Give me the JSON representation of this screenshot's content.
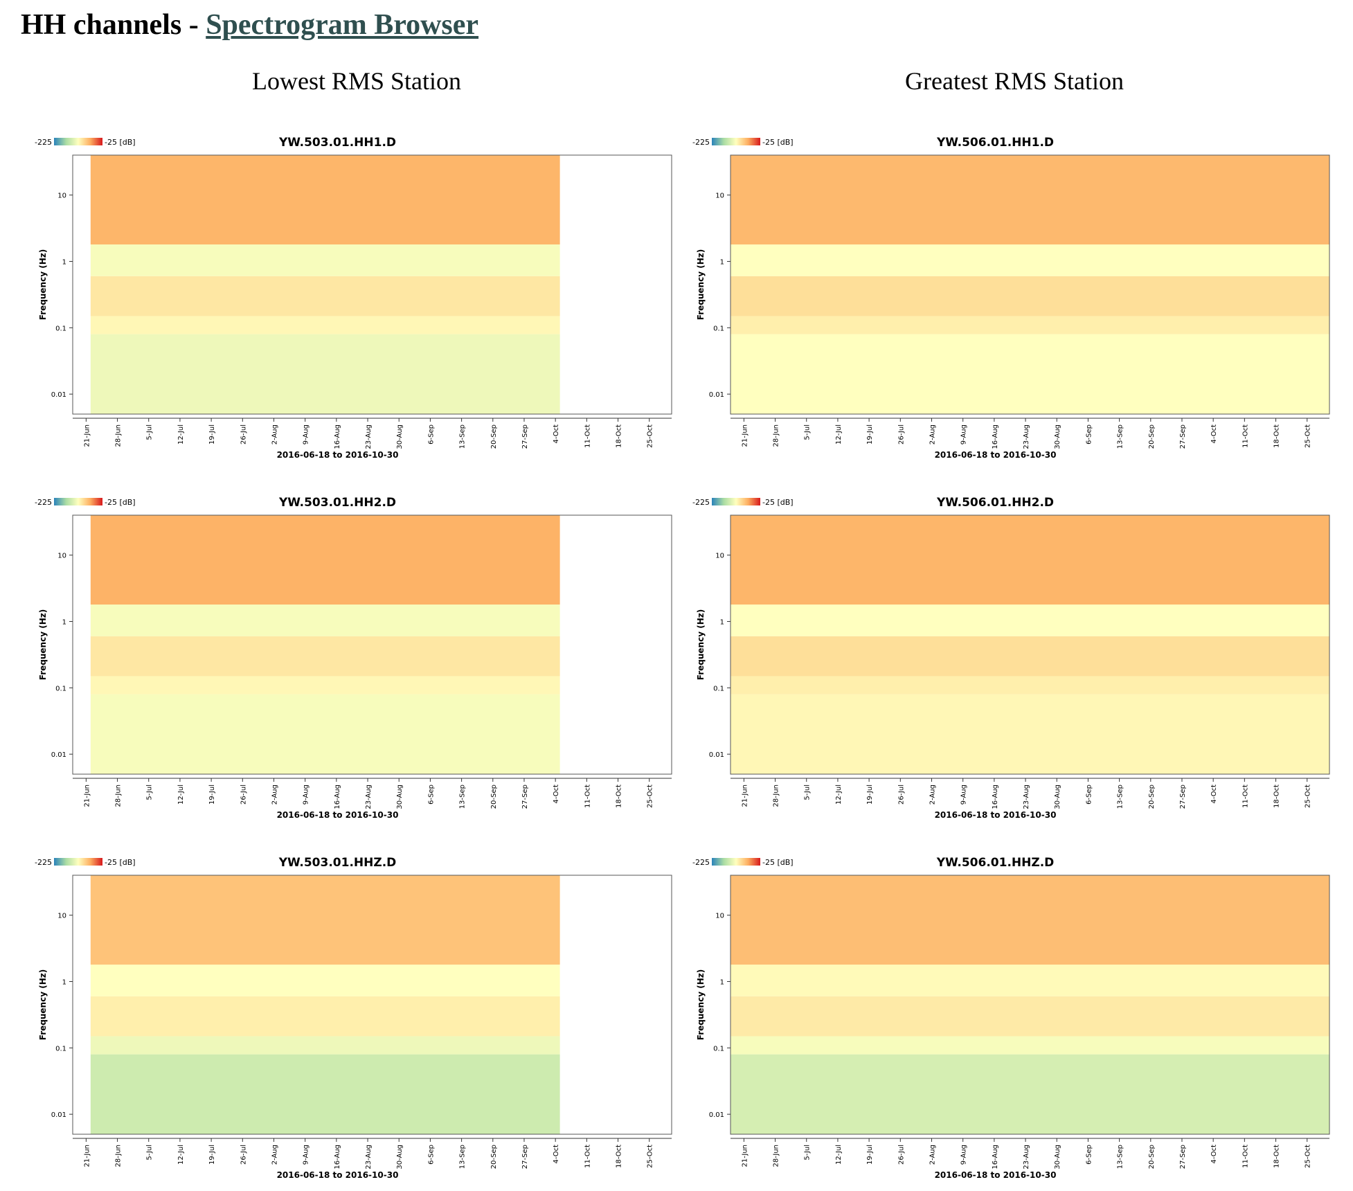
{
  "header": {
    "prefix": "HH channels - ",
    "link_text": "Spectrogram Browser"
  },
  "columns": [
    {
      "heading": "Lowest RMS Station"
    },
    {
      "heading": "Greatest RMS Station"
    }
  ],
  "colors": {
    "link": "#2f4f4f",
    "colormap": [
      "#2b83ba",
      "#abdda4",
      "#ffffbf",
      "#fdae61",
      "#d7191c"
    ]
  },
  "chart_data": [
    {
      "type": "heatmap",
      "station": "503",
      "channel": "HH1",
      "title": "YW.503.01.HH1.D",
      "ylabel": "Frequency (Hz)",
      "xlabel": "2016-06-18 to 2016-10-30",
      "colorbar": {
        "min_label": "-225",
        "max_label": "-25 [dB]",
        "range": [
          -225,
          -25
        ]
      },
      "y_scale": "log",
      "ylim": [
        0.005,
        40
      ],
      "yticks": [
        0.01,
        0.1,
        1,
        10
      ],
      "ytick_labels": [
        "0.01",
        "0.1",
        "1",
        "10"
      ],
      "xlim": [
        "2016-06-18",
        "2016-10-30"
      ],
      "xticks": [
        "2016-06-21",
        "2016-06-28",
        "2016-07-05",
        "2016-07-12",
        "2016-07-19",
        "2016-07-26",
        "2016-08-02",
        "2016-08-09",
        "2016-08-16",
        "2016-08-23",
        "2016-08-30",
        "2016-09-06",
        "2016-09-13",
        "2016-09-20",
        "2016-09-27",
        "2016-10-04",
        "2016-10-11",
        "2016-10-18",
        "2016-10-25"
      ],
      "xtick_labels": [
        "21-Jun",
        "28-Jun",
        "5-Jul",
        "12-Jul",
        "19-Jul",
        "26-Jul",
        "2-Aug",
        "9-Aug",
        "16-Aug",
        "23-Aug",
        "30-Aug",
        "6-Sep",
        "13-Sep",
        "20-Sep",
        "27-Sep",
        "4-Oct",
        "11-Oct",
        "18-Oct",
        "25-Oct"
      ],
      "data_range": [
        "2016-06-22",
        "2016-10-05"
      ],
      "bands": [
        {
          "fmin": 0.005,
          "fmax": 0.08,
          "db": -135
        },
        {
          "fmin": 0.08,
          "fmax": 0.15,
          "db": -120
        },
        {
          "fmin": 0.15,
          "fmax": 0.6,
          "db": -110
        },
        {
          "fmin": 0.6,
          "fmax": 1.8,
          "db": -130
        },
        {
          "fmin": 1.8,
          "fmax": 40,
          "db": -80
        }
      ]
    },
    {
      "type": "heatmap",
      "station": "506",
      "channel": "HH1",
      "title": "YW.506.01.HH1.D",
      "ylabel": "Frequency (Hz)",
      "xlabel": "2016-06-18 to 2016-10-30",
      "colorbar": {
        "min_label": "-225",
        "max_label": "-25 [dB]",
        "range": [
          -225,
          -25
        ]
      },
      "y_scale": "log",
      "ylim": [
        0.005,
        40
      ],
      "yticks": [
        0.01,
        0.1,
        1,
        10
      ],
      "ytick_labels": [
        "0.01",
        "0.1",
        "1",
        "10"
      ],
      "xlim": [
        "2016-06-18",
        "2016-10-30"
      ],
      "xticks": [
        "2016-06-21",
        "2016-06-28",
        "2016-07-05",
        "2016-07-12",
        "2016-07-19",
        "2016-07-26",
        "2016-08-02",
        "2016-08-09",
        "2016-08-16",
        "2016-08-23",
        "2016-08-30",
        "2016-09-06",
        "2016-09-13",
        "2016-09-20",
        "2016-09-27",
        "2016-10-04",
        "2016-10-11",
        "2016-10-18",
        "2016-10-25"
      ],
      "xtick_labels": [
        "21-Jun",
        "28-Jun",
        "5-Jul",
        "12-Jul",
        "19-Jul",
        "26-Jul",
        "2-Aug",
        "9-Aug",
        "16-Aug",
        "23-Aug",
        "30-Aug",
        "6-Sep",
        "13-Sep",
        "20-Sep",
        "27-Sep",
        "4-Oct",
        "11-Oct",
        "18-Oct",
        "25-Oct"
      ],
      "data_range": [
        "2016-06-18",
        "2016-10-30"
      ],
      "bands": [
        {
          "fmin": 0.005,
          "fmax": 0.08,
          "db": -125
        },
        {
          "fmin": 0.08,
          "fmax": 0.15,
          "db": -115
        },
        {
          "fmin": 0.15,
          "fmax": 0.6,
          "db": -105
        },
        {
          "fmin": 0.6,
          "fmax": 1.8,
          "db": -125
        },
        {
          "fmin": 1.8,
          "fmax": 40,
          "db": -82
        }
      ]
    },
    {
      "type": "heatmap",
      "station": "503",
      "channel": "HH2",
      "title": "YW.503.01.HH2.D",
      "ylabel": "Frequency (Hz)",
      "xlabel": "2016-06-18 to 2016-10-30",
      "colorbar": {
        "min_label": "-225",
        "max_label": "-25 [dB]",
        "range": [
          -225,
          -25
        ]
      },
      "y_scale": "log",
      "ylim": [
        0.005,
        40
      ],
      "yticks": [
        0.01,
        0.1,
        1,
        10
      ],
      "ytick_labels": [
        "0.01",
        "0.1",
        "1",
        "10"
      ],
      "xlim": [
        "2016-06-18",
        "2016-10-30"
      ],
      "xticks": [
        "2016-06-21",
        "2016-06-28",
        "2016-07-05",
        "2016-07-12",
        "2016-07-19",
        "2016-07-26",
        "2016-08-02",
        "2016-08-09",
        "2016-08-16",
        "2016-08-23",
        "2016-08-30",
        "2016-09-06",
        "2016-09-13",
        "2016-09-20",
        "2016-09-27",
        "2016-10-04",
        "2016-10-11",
        "2016-10-18",
        "2016-10-25"
      ],
      "xtick_labels": [
        "21-Jun",
        "28-Jun",
        "5-Jul",
        "12-Jul",
        "19-Jul",
        "26-Jul",
        "2-Aug",
        "9-Aug",
        "16-Aug",
        "23-Aug",
        "30-Aug",
        "6-Sep",
        "13-Sep",
        "20-Sep",
        "27-Sep",
        "4-Oct",
        "11-Oct",
        "18-Oct",
        "25-Oct"
      ],
      "data_range": [
        "2016-06-22",
        "2016-10-05"
      ],
      "bands": [
        {
          "fmin": 0.005,
          "fmax": 0.08,
          "db": -130
        },
        {
          "fmin": 0.08,
          "fmax": 0.15,
          "db": -120
        },
        {
          "fmin": 0.15,
          "fmax": 0.6,
          "db": -110
        },
        {
          "fmin": 0.6,
          "fmax": 1.8,
          "db": -130
        },
        {
          "fmin": 1.8,
          "fmax": 40,
          "db": -78
        }
      ]
    },
    {
      "type": "heatmap",
      "station": "506",
      "channel": "HH2",
      "title": "YW.506.01.HH2.D",
      "ylabel": "Frequency (Hz)",
      "xlabel": "2016-06-18 to 2016-10-30",
      "colorbar": {
        "min_label": "-225",
        "max_label": "-25 [dB]",
        "range": [
          -225,
          -25
        ]
      },
      "y_scale": "log",
      "ylim": [
        0.005,
        40
      ],
      "yticks": [
        0.01,
        0.1,
        1,
        10
      ],
      "ytick_labels": [
        "0.01",
        "0.1",
        "1",
        "10"
      ],
      "xlim": [
        "2016-06-18",
        "2016-10-30"
      ],
      "xticks": [
        "2016-06-21",
        "2016-06-28",
        "2016-07-05",
        "2016-07-12",
        "2016-07-19",
        "2016-07-26",
        "2016-08-02",
        "2016-08-09",
        "2016-08-16",
        "2016-08-23",
        "2016-08-30",
        "2016-09-06",
        "2016-09-13",
        "2016-09-20",
        "2016-09-27",
        "2016-10-04",
        "2016-10-11",
        "2016-10-18",
        "2016-10-25"
      ],
      "xtick_labels": [
        "21-Jun",
        "28-Jun",
        "5-Jul",
        "12-Jul",
        "19-Jul",
        "26-Jul",
        "2-Aug",
        "9-Aug",
        "16-Aug",
        "23-Aug",
        "30-Aug",
        "6-Sep",
        "13-Sep",
        "20-Sep",
        "27-Sep",
        "4-Oct",
        "11-Oct",
        "18-Oct",
        "25-Oct"
      ],
      "data_range": [
        "2016-06-18",
        "2016-10-30"
      ],
      "bands": [
        {
          "fmin": 0.005,
          "fmax": 0.08,
          "db": -120
        },
        {
          "fmin": 0.08,
          "fmax": 0.15,
          "db": -115
        },
        {
          "fmin": 0.15,
          "fmax": 0.6,
          "db": -105
        },
        {
          "fmin": 0.6,
          "fmax": 1.8,
          "db": -125
        },
        {
          "fmin": 1.8,
          "fmax": 40,
          "db": -80
        }
      ]
    },
    {
      "type": "heatmap",
      "station": "503",
      "channel": "HHZ",
      "title": "YW.503.01.HHZ.D",
      "ylabel": "Frequency (Hz)",
      "xlabel": "2016-06-18 to 2016-10-30",
      "colorbar": {
        "min_label": "-225",
        "max_label": "-25 [dB]",
        "range": [
          -225,
          -25
        ]
      },
      "y_scale": "log",
      "ylim": [
        0.005,
        40
      ],
      "yticks": [
        0.01,
        0.1,
        1,
        10
      ],
      "ytick_labels": [
        "0.01",
        "0.1",
        "1",
        "10"
      ],
      "xlim": [
        "2016-06-18",
        "2016-10-30"
      ],
      "xticks": [
        "2016-06-21",
        "2016-06-28",
        "2016-07-05",
        "2016-07-12",
        "2016-07-19",
        "2016-07-26",
        "2016-08-02",
        "2016-08-09",
        "2016-08-16",
        "2016-08-23",
        "2016-08-30",
        "2016-09-06",
        "2016-09-13",
        "2016-09-20",
        "2016-09-27",
        "2016-10-04",
        "2016-10-11",
        "2016-10-18",
        "2016-10-25"
      ],
      "xtick_labels": [
        "21-Jun",
        "28-Jun",
        "5-Jul",
        "12-Jul",
        "19-Jul",
        "26-Jul",
        "2-Aug",
        "9-Aug",
        "16-Aug",
        "23-Aug",
        "30-Aug",
        "6-Sep",
        "13-Sep",
        "20-Sep",
        "27-Sep",
        "4-Oct",
        "11-Oct",
        "18-Oct",
        "25-Oct"
      ],
      "data_range": [
        "2016-06-22",
        "2016-10-05"
      ],
      "bands": [
        {
          "fmin": 0.005,
          "fmax": 0.08,
          "db": -155
        },
        {
          "fmin": 0.08,
          "fmax": 0.15,
          "db": -135
        },
        {
          "fmin": 0.15,
          "fmax": 0.6,
          "db": -115
        },
        {
          "fmin": 0.6,
          "fmax": 1.8,
          "db": -125
        },
        {
          "fmin": 1.8,
          "fmax": 40,
          "db": -88
        }
      ]
    },
    {
      "type": "heatmap",
      "station": "506",
      "channel": "HHZ",
      "title": "YW.506.01.HHZ.D",
      "ylabel": "Frequency (Hz)",
      "xlabel": "2016-06-18 to 2016-10-30",
      "colorbar": {
        "min_label": "-225",
        "max_label": "-25 [dB]",
        "range": [
          -225,
          -25
        ]
      },
      "y_scale": "log",
      "ylim": [
        0.005,
        40
      ],
      "yticks": [
        0.01,
        0.1,
        1,
        10
      ],
      "ytick_labels": [
        "0.01",
        "0.1",
        "1",
        "10"
      ],
      "xlim": [
        "2016-06-18",
        "2016-10-30"
      ],
      "xticks": [
        "2016-06-21",
        "2016-06-28",
        "2016-07-05",
        "2016-07-12",
        "2016-07-19",
        "2016-07-26",
        "2016-08-02",
        "2016-08-09",
        "2016-08-16",
        "2016-08-23",
        "2016-08-30",
        "2016-09-06",
        "2016-09-13",
        "2016-09-20",
        "2016-09-27",
        "2016-10-04",
        "2016-10-11",
        "2016-10-18",
        "2016-10-25"
      ],
      "xtick_labels": [
        "21-Jun",
        "28-Jun",
        "5-Jul",
        "12-Jul",
        "19-Jul",
        "26-Jul",
        "2-Aug",
        "9-Aug",
        "16-Aug",
        "23-Aug",
        "30-Aug",
        "6-Sep",
        "13-Sep",
        "20-Sep",
        "27-Sep",
        "4-Oct",
        "11-Oct",
        "18-Oct",
        "25-Oct"
      ],
      "data_range": [
        "2016-06-18",
        "2016-10-30"
      ],
      "bands": [
        {
          "fmin": 0.005,
          "fmax": 0.08,
          "db": -150
        },
        {
          "fmin": 0.08,
          "fmax": 0.15,
          "db": -130
        },
        {
          "fmin": 0.15,
          "fmax": 0.6,
          "db": -112
        },
        {
          "fmin": 0.6,
          "fmax": 1.8,
          "db": -122
        },
        {
          "fmin": 1.8,
          "fmax": 40,
          "db": -85
        }
      ]
    }
  ]
}
